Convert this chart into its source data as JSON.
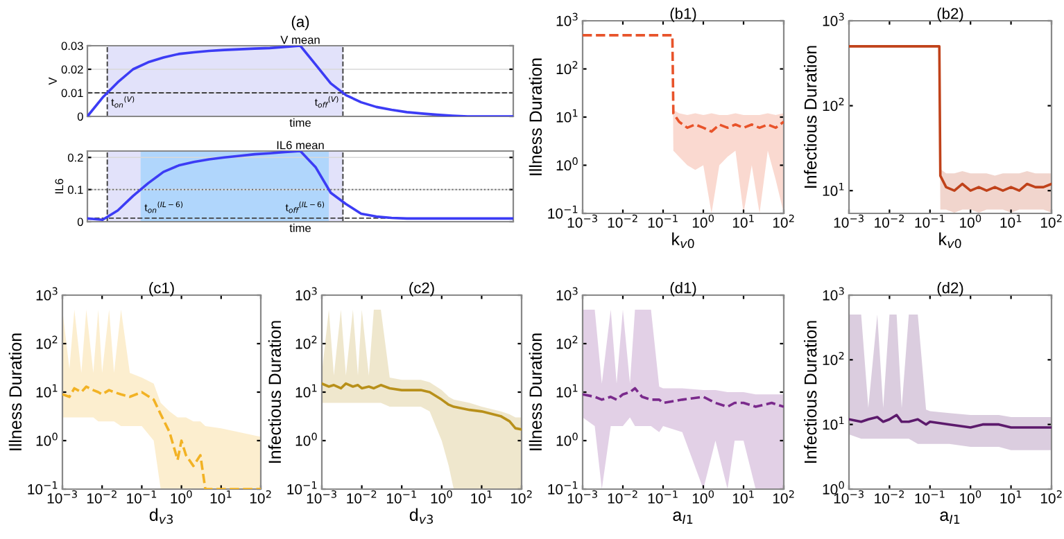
{
  "chart_data": [
    {
      "type": "line",
      "title": "(a)",
      "subtitle": "V mean",
      "xlabel": "time",
      "ylabel": "V",
      "categories": [
        null,
        null,
        null,
        null,
        null,
        null,
        null,
        null,
        null,
        null,
        null,
        null,
        null,
        null,
        null,
        null,
        null,
        null,
        null,
        null,
        null,
        null,
        null,
        null,
        null,
        null,
        null,
        null,
        null
      ],
      "series": [
        {
          "color": "#3c3cf5",
          "values": [
            0,
            0.008,
            0.0145,
            0.02,
            0.023,
            0.025,
            0.0265,
            0.0272,
            0.0278,
            0.0282,
            0.0285,
            0.0288,
            0.029,
            0.0295,
            0.03,
            0.022,
            0.014,
            0.009,
            0.006,
            0.004,
            0.0028,
            0.0018,
            0.0012,
            0.0007,
            0.0003,
            0,
            0,
            0,
            0
          ]
        }
      ],
      "ylim": [
        0,
        0.03
      ],
      "yticks": [
        0,
        0.01,
        0.02,
        0.03
      ],
      "grid": "y",
      "line_style": "solid",
      "marker": "none",
      "ref_lines": [
        {
          "axis": "y",
          "value": 0.01,
          "color": "#404040",
          "line_style": "dashed"
        }
      ],
      "annotations": [
        "t$_{on}$$^{(V)}$",
        "t$_{off}$$^{(V)}$"
      ]
    },
    {
      "type": "line",
      "title": "IL6 mean",
      "xlabel": "time",
      "ylabel": "IL6",
      "categories": [
        null,
        null,
        null,
        null,
        null,
        null,
        null,
        null,
        null,
        null,
        null,
        null,
        null,
        null,
        null,
        null,
        null,
        null,
        null,
        null,
        null,
        null,
        null,
        null,
        null,
        null,
        null,
        null,
        null
      ],
      "series": [
        {
          "color": "#3c3cf5",
          "values": [
            0.01,
            0.006,
            0.035,
            0.08,
            0.12,
            0.155,
            0.175,
            0.186,
            0.194,
            0.2,
            0.205,
            0.21,
            0.213,
            0.217,
            0.22,
            0.17,
            0.09,
            0.055,
            0.025,
            0.016,
            0.012,
            0.01,
            0.01,
            0.01,
            0.01,
            0.01,
            0.01,
            0.01,
            0.01
          ]
        }
      ],
      "ylim": [
        0,
        0.22
      ],
      "yticks": [
        0,
        0.1,
        0.2
      ],
      "grid": "y",
      "line_style": "solid",
      "marker": "none",
      "ref_lines": [
        {
          "axis": "y",
          "value": 0.1,
          "color": "#606060",
          "line_style": "dotted"
        },
        {
          "axis": "y",
          "value": 0.011,
          "color": "#404040",
          "line_style": "dashed"
        }
      ],
      "annotations": [
        "t$_{on}$$^{(IL−6)}$",
        "t$_{off}$$^{(IL−6)}$"
      ]
    },
    {
      "type": "line",
      "title": "(b1)",
      "xlabel": "k$_{v0}$",
      "ylabel": "Illness Duration",
      "log": "xy",
      "line_style": "dashed",
      "marker": "none",
      "x": [
        0.001,
        0.01,
        0.1,
        0.17,
        0.18,
        0.25,
        0.4,
        0.63,
        1,
        1.6,
        2.5,
        4,
        6.3,
        10,
        16,
        25,
        40,
        63,
        100
      ],
      "series": [
        {
          "color": "#e8532a",
          "values": [
            500,
            500,
            500,
            500,
            12,
            8,
            6,
            7,
            6,
            5,
            7,
            6,
            7,
            6,
            7,
            6,
            7,
            6,
            8
          ],
          "lower": [
            500,
            500,
            500,
            500,
            2,
            1.5,
            1,
            0.8,
            1,
            0.1,
            1,
            1.5,
            2,
            0.1,
            1,
            0.1,
            2,
            0.5,
            0.1
          ],
          "upper": [
            500,
            500,
            500,
            500,
            14,
            12,
            11,
            12,
            11,
            12,
            11,
            11,
            12,
            11,
            11,
            11,
            12,
            11,
            12
          ]
        }
      ],
      "xlim": [
        0.001,
        100
      ],
      "xticks": [
        {
          "value": 0.001,
          "label": "10$^{−3}$"
        },
        {
          "value": 0.01,
          "label": "10$^{−2}$"
        },
        {
          "value": 0.1,
          "label": "10$^{−1}$"
        },
        {
          "value": 1,
          "label": "10$^{0}$"
        },
        {
          "value": 10,
          "label": "10$^{1}$"
        },
        {
          "value": 100,
          "label": "10$^{2}$"
        }
      ],
      "ylim": [
        0.1,
        1000
      ],
      "yticks": [
        {
          "value": 0.1,
          "label": "10$^{−1}$"
        },
        {
          "value": 1,
          "label": "10$^{0}$"
        },
        {
          "value": 10,
          "label": "10$^{1}$"
        },
        {
          "value": 100,
          "label": "10$^{2}$"
        },
        {
          "value": 1000,
          "label": "10$^{3}$"
        }
      ]
    },
    {
      "type": "line",
      "title": "(b2)",
      "xlabel": "k$_{v0}$",
      "ylabel": "Infectious Duration",
      "log": "xy",
      "line_style": "solid",
      "marker": "none",
      "x": [
        0.001,
        0.01,
        0.1,
        0.17,
        0.18,
        0.25,
        0.4,
        0.63,
        1,
        1.6,
        2.5,
        4,
        6.3,
        10,
        16,
        25,
        40,
        63,
        100
      ],
      "series": [
        {
          "color": "#c0421a",
          "values": [
            500,
            500,
            500,
            500,
            15,
            11,
            10,
            12,
            10,
            11,
            10,
            11,
            10,
            11,
            10,
            12,
            11,
            11,
            12
          ],
          "lower": [
            500,
            500,
            500,
            500,
            6,
            6,
            5.5,
            6,
            6,
            5.5,
            6,
            6,
            6,
            5.5,
            6,
            6,
            6,
            6,
            5.5
          ],
          "upper": [
            500,
            500,
            500,
            500,
            18,
            16,
            16,
            17,
            16,
            16,
            16,
            15,
            16,
            16,
            16,
            17,
            16,
            16,
            16
          ]
        }
      ],
      "xlim": [
        0.001,
        100
      ],
      "xticks": [
        {
          "value": 0.001,
          "label": "10$^{−3}$"
        },
        {
          "value": 0.01,
          "label": "10$^{−2}$"
        },
        {
          "value": 0.1,
          "label": "10$^{−1}$"
        },
        {
          "value": 1,
          "label": "10$^{0}$"
        },
        {
          "value": 10,
          "label": "10$^{1}$"
        },
        {
          "value": 100,
          "label": "10$^{2}$"
        }
      ],
      "ylim": [
        5.4,
        1000
      ],
      "yticks": [
        {
          "value": 10,
          "label": "10$^{1}$"
        },
        {
          "value": 100,
          "label": "10$^{2}$"
        },
        {
          "value": 1000,
          "label": "10$^{3}$"
        }
      ]
    },
    {
      "type": "line",
      "title": "(c1)",
      "xlabel": "d$_{v3}$",
      "ylabel": "Illness Duration",
      "log": "xy",
      "line_style": "dashed",
      "marker": "none",
      "x": [
        0.001,
        0.0015,
        0.002,
        0.003,
        0.004,
        0.006,
        0.008,
        0.01,
        0.015,
        0.02,
        0.03,
        0.05,
        0.1,
        0.2,
        0.3,
        0.5,
        0.8,
        1,
        1.3,
        2,
        3,
        4,
        10,
        100
      ],
      "series": [
        {
          "color": "#f2b224",
          "values": [
            9,
            8,
            12,
            10,
            13,
            11,
            10,
            9,
            11,
            10,
            9,
            8,
            10,
            7,
            3.5,
            1.5,
            0.4,
            1,
            0.5,
            0.3,
            0.5,
            0.1,
            0.1,
            0.1
          ],
          "lower": [
            3,
            3,
            3,
            3,
            3,
            3,
            2.5,
            2.5,
            2.5,
            2.5,
            2,
            2,
            2,
            1,
            0.1,
            0.1,
            0.1,
            0.1,
            0.1,
            0.1,
            0.1,
            0.1,
            0.1,
            0.1
          ],
          "upper": [
            500,
            30,
            500,
            25,
            500,
            25,
            500,
            25,
            500,
            25,
            500,
            25,
            20,
            15,
            6,
            4,
            3,
            3,
            3,
            2.5,
            2.5,
            2,
            1.8,
            1.2
          ]
        }
      ],
      "xlim": [
        0.001,
        100
      ],
      "xticks": [
        {
          "value": 0.001,
          "label": "10$^{−3}$"
        },
        {
          "value": 0.01,
          "label": "10$^{−2}$"
        },
        {
          "value": 0.1,
          "label": "10$^{−1}$"
        },
        {
          "value": 1,
          "label": "10$^{0}$"
        },
        {
          "value": 10,
          "label": "10$^{1}$"
        },
        {
          "value": 100,
          "label": "10$^{2}$"
        }
      ],
      "ylim": [
        0.1,
        1000
      ],
      "yticks": [
        {
          "value": 0.1,
          "label": "10$^{−1}$"
        },
        {
          "value": 1,
          "label": "10$^{0}$"
        },
        {
          "value": 10,
          "label": "10$^{1}$"
        },
        {
          "value": 100,
          "label": "10$^{2}$"
        },
        {
          "value": 1000,
          "label": "10$^{3}$"
        }
      ]
    },
    {
      "type": "line",
      "title": "(c2)",
      "xlabel": "d$_{v3}$",
      "ylabel": "Infectious Duration",
      "log": "xy",
      "line_style": "solid",
      "marker": "none",
      "x": [
        0.001,
        0.0015,
        0.002,
        0.003,
        0.004,
        0.006,
        0.008,
        0.01,
        0.015,
        0.02,
        0.03,
        0.05,
        0.1,
        0.3,
        0.5,
        1,
        1.5,
        2,
        5,
        10,
        30,
        50,
        70,
        100
      ],
      "series": [
        {
          "color": "#b8901a",
          "values": [
            15,
            13,
            14,
            12,
            15,
            13,
            14,
            12,
            13,
            12,
            14,
            12,
            11,
            11,
            10,
            7,
            5.5,
            5,
            4.3,
            4,
            3.2,
            2.5,
            1.8,
            1.7
          ],
          "lower": [
            6,
            6,
            6,
            6,
            6,
            6,
            6,
            6,
            6,
            6,
            6,
            5,
            5,
            5,
            4,
            1,
            0.3,
            0.1,
            0.1,
            0.1,
            0.1,
            0.1,
            0.1,
            0.1
          ],
          "upper": [
            25,
            500,
            22,
            500,
            22,
            500,
            22,
            500,
            22,
            500,
            500,
            20,
            18,
            18,
            16,
            11,
            8,
            7,
            6,
            5,
            4,
            3.5,
            3,
            3
          ]
        }
      ],
      "xlim": [
        0.001,
        100
      ],
      "xticks": [
        {
          "value": 0.001,
          "label": "10$^{−3}$"
        },
        {
          "value": 0.01,
          "label": "10$^{−2}$"
        },
        {
          "value": 0.1,
          "label": "10$^{−1}$"
        },
        {
          "value": 1,
          "label": "10$^{0}$"
        },
        {
          "value": 10,
          "label": "10$^{1}$"
        },
        {
          "value": 100,
          "label": "10$^{2}$"
        }
      ],
      "ylim": [
        0.1,
        1000
      ],
      "yticks": [
        {
          "value": 0.1,
          "label": "10$^{−1}$"
        },
        {
          "value": 1,
          "label": "10$^{0}$"
        },
        {
          "value": 10,
          "label": "10$^{1}$"
        },
        {
          "value": 100,
          "label": "10$^{2}$"
        },
        {
          "value": 1000,
          "label": "10$^{3}$"
        }
      ]
    },
    {
      "type": "line",
      "title": "(d1)",
      "xlabel": "a$_{I1}$",
      "ylabel": "Illness Duration",
      "log": "xy",
      "line_style": "dashed",
      "marker": "none",
      "x": [
        0.001,
        0.002,
        0.003,
        0.005,
        0.007,
        0.01,
        0.015,
        0.02,
        0.03,
        0.05,
        0.08,
        0.1,
        0.3,
        1,
        2,
        4,
        6,
        10,
        20,
        50,
        100
      ],
      "series": [
        {
          "color": "#7a2a8c",
          "values": [
            9,
            8,
            7,
            8,
            7,
            9,
            10,
            12,
            8,
            7,
            7,
            6,
            7,
            8,
            6,
            5,
            6,
            6,
            5,
            6,
            5
          ],
          "lower": [
            3,
            2,
            0.1,
            2,
            2,
            2,
            3,
            2,
            2,
            2,
            1.5,
            2,
            1.5,
            0.1,
            1,
            0.1,
            1,
            1,
            0.1,
            0.1,
            0.1
          ],
          "upper": [
            500,
            500,
            15,
            500,
            15,
            500,
            15,
            500,
            500,
            500,
            13,
            12,
            12,
            11,
            11,
            10,
            10,
            10,
            9,
            9,
            9
          ]
        }
      ],
      "xlim": [
        0.001,
        100
      ],
      "xticks": [
        {
          "value": 0.001,
          "label": "10$^{−3}$"
        },
        {
          "value": 0.01,
          "label": "10$^{−2}$"
        },
        {
          "value": 0.1,
          "label": "10$^{−1}$"
        },
        {
          "value": 1,
          "label": "10$^{0}$"
        },
        {
          "value": 10,
          "label": "10$^{1}$"
        },
        {
          "value": 100,
          "label": "10$^{2}$"
        }
      ],
      "ylim": [
        0.1,
        1000
      ],
      "yticks": [
        {
          "value": 0.1,
          "label": "10$^{−1}$"
        },
        {
          "value": 1,
          "label": "10$^{0}$"
        },
        {
          "value": 10,
          "label": "10$^{1}$"
        },
        {
          "value": 100,
          "label": "10$^{2}$"
        },
        {
          "value": 1000,
          "label": "10$^{3}$"
        }
      ]
    },
    {
      "type": "line",
      "title": "(d2)",
      "xlabel": "a$_{I1}$",
      "ylabel": "Infectious Duration",
      "log": "xy",
      "line_style": "solid",
      "marker": "none",
      "x": [
        0.001,
        0.002,
        0.003,
        0.005,
        0.007,
        0.01,
        0.015,
        0.02,
        0.03,
        0.05,
        0.08,
        0.1,
        0.3,
        1,
        2,
        5,
        10,
        30,
        100
      ],
      "series": [
        {
          "color": "#5c1a6c",
          "values": [
            12,
            11,
            12,
            13,
            11,
            12,
            14,
            11,
            11,
            12,
            10,
            11,
            10,
            9,
            10,
            10,
            9,
            9,
            9
          ],
          "lower": [
            7,
            6,
            6,
            6,
            6,
            6,
            6,
            6,
            6,
            5,
            5,
            5,
            5,
            4.5,
            4.5,
            4.5,
            4,
            4,
            4
          ],
          "upper": [
            500,
            500,
            18,
            500,
            18,
            500,
            500,
            18,
            500,
            500,
            17,
            16,
            15,
            14,
            14,
            14,
            13,
            13,
            13
          ]
        }
      ],
      "xlim": [
        0.001,
        100
      ],
      "xticks": [
        {
          "value": 0.001,
          "label": "10$^{−3}$"
        },
        {
          "value": 0.01,
          "label": "10$^{−2}$"
        },
        {
          "value": 0.1,
          "label": "10$^{−1}$"
        },
        {
          "value": 1,
          "label": "10$^{0}$"
        },
        {
          "value": 10,
          "label": "10$^{1}$"
        },
        {
          "value": 100,
          "label": "10$^{2}$"
        }
      ],
      "ylim": [
        1,
        1000
      ],
      "yticks": [
        {
          "value": 1,
          "label": "10$^{0}$"
        },
        {
          "value": 10,
          "label": "10$^{1}$"
        },
        {
          "value": 100,
          "label": "10$^{2}$"
        },
        {
          "value": 1000,
          "label": "10$^{3}$"
        }
      ]
    }
  ]
}
